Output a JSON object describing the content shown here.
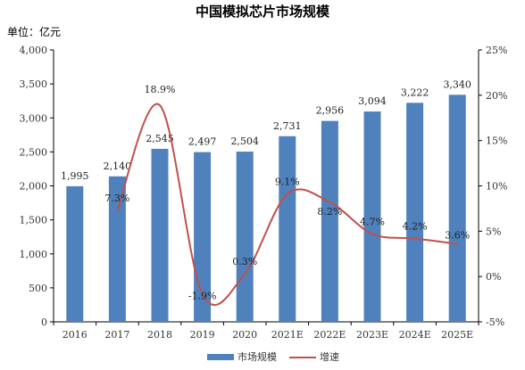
{
  "chart_data": {
    "type": "bar",
    "title": "中国模拟芯片市场规模",
    "unit_label": "单位：亿元",
    "categories": [
      "2016",
      "2017",
      "2018",
      "2019",
      "2020",
      "2021E",
      "2022E",
      "2023E",
      "2024E",
      "2025E"
    ],
    "bar_series": {
      "name": "市场规模",
      "color": "#4f81bd",
      "values": [
        1995,
        2140,
        2545,
        2497,
        2504,
        2731,
        2956,
        3094,
        3222,
        3340
      ],
      "labels": [
        "1,995",
        "2,140",
        "2,545",
        "2,497",
        "2,504",
        "2,731",
        "2,956",
        "3,094",
        "3,222",
        "3,340"
      ]
    },
    "line_series": {
      "name": "增速",
      "color": "#c0504d",
      "categories": [
        "2017",
        "2018",
        "2019",
        "2020",
        "2021E",
        "2022E",
        "2023E",
        "2024E",
        "2025E"
      ],
      "values": [
        7.3,
        18.9,
        -1.9,
        0.3,
        9.1,
        8.2,
        4.7,
        4.2,
        3.6
      ],
      "labels": [
        "7.3%",
        "18.9%",
        "-1.9%",
        "0.3%",
        "9.1%",
        "8.2%",
        "4.7%",
        "4.2%",
        "3.6%"
      ]
    },
    "left_axis": {
      "ylim": [
        0,
        4000
      ],
      "ticks": [
        0,
        500,
        1000,
        1500,
        2000,
        2500,
        3000,
        3500,
        4000
      ],
      "tick_labels": [
        "0",
        "500",
        "1,000",
        "1,500",
        "2,000",
        "2,500",
        "3,000",
        "3,500",
        "4,000"
      ]
    },
    "right_axis": {
      "ylim": [
        -5,
        25
      ],
      "ticks": [
        -5,
        0,
        5,
        10,
        15,
        20,
        25
      ],
      "tick_labels": [
        "-5%",
        "0%",
        "5%",
        "10%",
        "15%",
        "20%",
        "25%"
      ]
    },
    "grid": false,
    "legend": "bottom",
    "legend_items": [
      "市场规模",
      "增速"
    ]
  }
}
